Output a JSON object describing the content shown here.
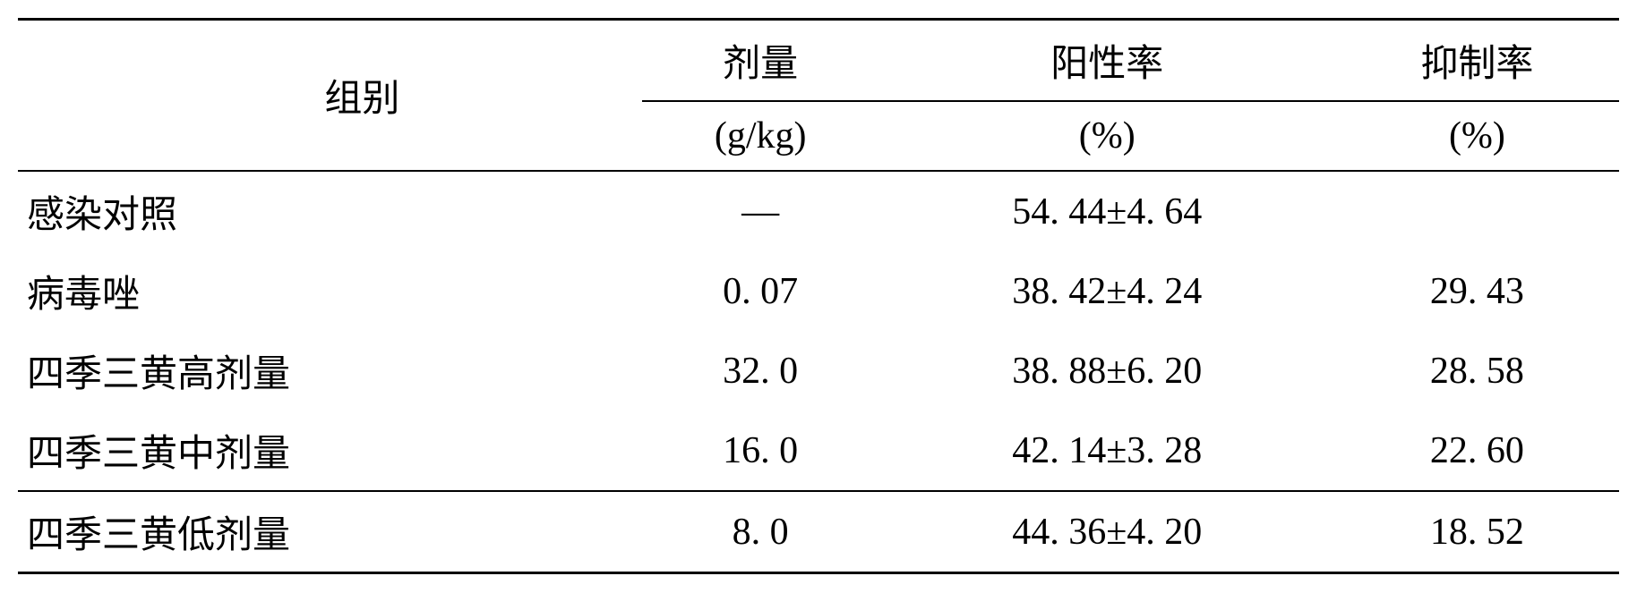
{
  "table": {
    "headers": {
      "group": "组别",
      "dose": "剂量",
      "positive_rate": "阳性率",
      "inhibition_rate": "抑制率"
    },
    "units": {
      "dose": "(g/kg)",
      "positive_rate": "(%)",
      "inhibition_rate": "(%)"
    },
    "rows": [
      {
        "group": "感染对照",
        "dose": "—",
        "positive_rate": "54. 44±4. 64",
        "inhibition_rate": ""
      },
      {
        "group": "病毒唑",
        "dose": "0. 07",
        "positive_rate": "38. 42±4. 24",
        "inhibition_rate": "29. 43"
      },
      {
        "group": "四季三黄高剂量",
        "dose": "32. 0",
        "positive_rate": "38. 88±6. 20",
        "inhibition_rate": "28. 58"
      },
      {
        "group": "四季三黄中剂量",
        "dose": "16. 0",
        "positive_rate": "42. 14±3. 28",
        "inhibition_rate": "22. 60"
      },
      {
        "group": "四季三黄低剂量",
        "dose": "8. 0",
        "positive_rate": "44. 36±4. 20",
        "inhibition_rate": "18. 52"
      }
    ],
    "styling": {
      "font_family": "SimSun",
      "font_size_pt": 42,
      "text_color": "#000000",
      "background_color": "#ffffff",
      "border_color": "#000000",
      "outer_border_width": 3,
      "inner_border_width": 2,
      "col_widths_pct": [
        25,
        25,
        25,
        25
      ]
    }
  }
}
